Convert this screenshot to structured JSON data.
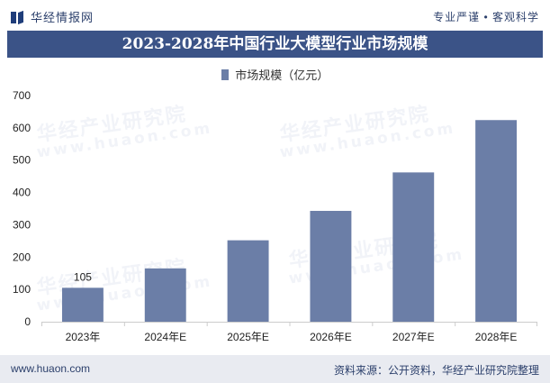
{
  "header": {
    "logo_text": "华经情报网",
    "slogan": "专业严谨 • 客观科学"
  },
  "colors": {
    "title_band": "#3b5387",
    "bar": "#6b7ea7",
    "footer_bg": "#e9ebf1"
  },
  "watermark": {
    "text": "华经产业研究院",
    "url": "www.huaon.com"
  },
  "chart_data": {
    "type": "bar",
    "title": "2023-2028年中国行业大模型行业市场规模",
    "categories": [
      "2023年",
      "2024年E",
      "2025年E",
      "2026年E",
      "2027年E",
      "2028年E"
    ],
    "series": [
      {
        "name": "市场规模（亿元）",
        "values": [
          105,
          165,
          252,
          343,
          462,
          624
        ]
      }
    ],
    "data_labels": [
      {
        "index": 0,
        "text": "105"
      }
    ],
    "ylim": [
      0,
      700
    ],
    "yticks": [
      0,
      100,
      200,
      300,
      400,
      500,
      600,
      700
    ],
    "grid": false,
    "legend_position": "top-center"
  },
  "footer": {
    "url": "www.huaon.com",
    "source": "资料来源：公开资料，华经产业研究院整理"
  }
}
